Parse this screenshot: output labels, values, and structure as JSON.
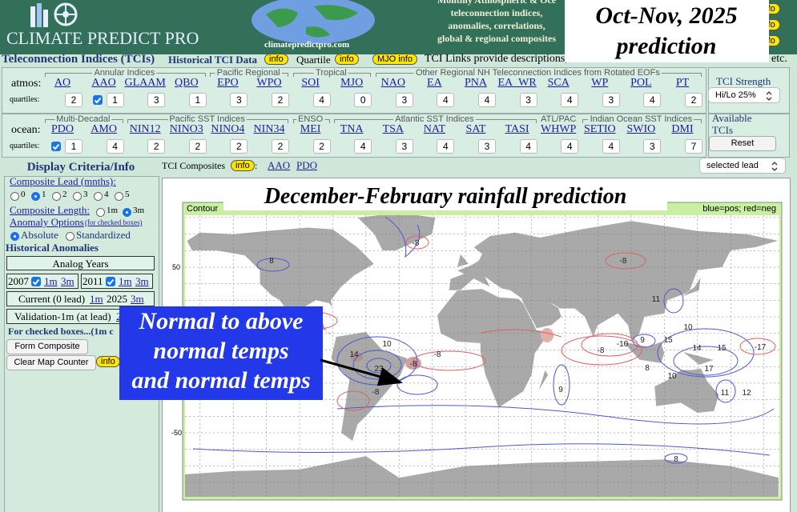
{
  "header": {
    "logo": "CLIMATE PREDICT PRO",
    "site": "climatepredictpro.com",
    "blurb": [
      "Monthly Atmospheric & Oce",
      "teleconnection indices,",
      "anomalies, correlations,",
      "global & regional composites"
    ],
    "info": "info"
  },
  "overlay_title": [
    "Oct-Nov, 2025",
    "prediction"
  ],
  "tci_bar": {
    "title": "Teleconnection Indices (TCIs)",
    "historical": "Historical TCI Data",
    "quartile": "Quartile",
    "info": "info",
    "mjo_info": "MJO info",
    "links_note": "TCI Links provide descriptions, h",
    "etc": "etc."
  },
  "atmos": {
    "label": "atmos:",
    "quartiles_label": "quartiles:",
    "groups": [
      "Annular Indices",
      "Pacific Regional",
      "Tropical",
      "Other Regional NH Teleconnection Indices from Rotated EOFs"
    ],
    "indices": [
      {
        "name": "AO",
        "quartile": 2,
        "checked": false
      },
      {
        "name": "AAO",
        "quartile": 1,
        "checked": true
      },
      {
        "name": "GLAAM",
        "quartile": 3,
        "checked": false
      },
      {
        "name": "QBO",
        "quartile": 1,
        "checked": false
      },
      {
        "name": "EPO",
        "quartile": 3,
        "checked": false
      },
      {
        "name": "WPO",
        "quartile": 2,
        "checked": false
      },
      {
        "name": "SOI",
        "quartile": 4,
        "checked": false
      },
      {
        "name": "MJO",
        "quartile": 0,
        "checked": false
      },
      {
        "name": "NAO",
        "quartile": 3,
        "checked": false
      },
      {
        "name": "EA",
        "quartile": 4,
        "checked": false
      },
      {
        "name": "PNA",
        "quartile": 4,
        "checked": false
      },
      {
        "name": "EA_WR",
        "quartile": 3,
        "checked": false
      },
      {
        "name": "SCA",
        "quartile": 4,
        "checked": false
      },
      {
        "name": "WP",
        "quartile": 3,
        "checked": false
      },
      {
        "name": "POL",
        "quartile": 4,
        "checked": false
      },
      {
        "name": "PT",
        "quartile": 2,
        "checked": false
      }
    ],
    "strength_label": "TCI Strength",
    "strength_value": "Hi/Lo 25%"
  },
  "ocean": {
    "label": "ocean:",
    "quartiles_label": "quartiles:",
    "groups": [
      "Multi-Decadal",
      "Pacific SST Indices",
      "ENSO",
      "Atlantic SST Indices",
      "ATL/PAC",
      "Indian Ocean SST Indices"
    ],
    "indices": [
      {
        "name": "PDO",
        "quartile": 1,
        "checked": true
      },
      {
        "name": "AMO",
        "quartile": 4,
        "checked": false
      },
      {
        "name": "NIN12",
        "quartile": 2,
        "checked": false
      },
      {
        "name": "NINO3",
        "quartile": 2,
        "checked": false
      },
      {
        "name": "NINO4",
        "quartile": 2,
        "checked": false
      },
      {
        "name": "NIN34",
        "quartile": 2,
        "checked": false
      },
      {
        "name": "MEI",
        "quartile": 2,
        "checked": false
      },
      {
        "name": "TNA",
        "quartile": 4,
        "checked": false
      },
      {
        "name": "TSA",
        "quartile": 3,
        "checked": false
      },
      {
        "name": "NAT",
        "quartile": 4,
        "checked": false
      },
      {
        "name": "SAT",
        "quartile": 3,
        "checked": false
      },
      {
        "name": "TASI",
        "quartile": 4,
        "checked": false
      },
      {
        "name": "WHWP",
        "quartile": 4,
        "checked": false
      },
      {
        "name": "SETIO",
        "quartile": 4,
        "checked": false
      },
      {
        "name": "SWIO",
        "quartile": 3,
        "checked": false
      },
      {
        "name": "DMI",
        "quartile": 7,
        "checked": false
      }
    ],
    "available_label": [
      "Available",
      "TCIs"
    ],
    "reset": "Reset"
  },
  "side": {
    "title": "Display Criteria/Info",
    "lead_label": "Composite Lead (mnths):",
    "lead_options": [
      "0",
      "1",
      "2",
      "3",
      "4",
      "5"
    ],
    "lead_selected": 1,
    "length_label": "Composite Length:",
    "length_options": [
      "1m",
      "3m"
    ],
    "length_selected": 1,
    "anomaly_label": "Anomaly Options",
    "anomaly_note": "(for checked boxes)",
    "anomaly_options": [
      "Absolute",
      "Standardized"
    ],
    "anomaly_selected": 0,
    "historical": "Historical Anomalies",
    "analog_title": "Analog Years",
    "analogs": [
      {
        "year": "2007",
        "checked": true,
        "links": [
          "1m",
          "3m"
        ]
      },
      {
        "year": "2011",
        "checked": true,
        "links": [
          "1m",
          "3m"
        ]
      }
    ],
    "current": [
      "Current (0 lead)",
      "1m",
      "2025",
      "3m"
    ],
    "validation": [
      "Validation-1m (at lead)",
      "2"
    ],
    "checked_note": "For checked boxes...(1m c",
    "form_button": "Form Composite",
    "clear_button": "Clear Map Counter",
    "info": "info"
  },
  "composites": {
    "label": "TCI Composites",
    "info": "info",
    "colon": ":",
    "links": [
      "AAO",
      "PDO"
    ],
    "lead_select": "selected lead"
  },
  "map": {
    "title": "December-February rainfall prediction",
    "contour": "Contour",
    "legend": "blue=pos; red=neg",
    "lat_labels": [
      "50",
      "-50"
    ],
    "contour_labels": [
      "-8",
      "8",
      "-8",
      "11",
      "10",
      "9",
      "15",
      "-10",
      "-8",
      "14",
      "15",
      "-17",
      "17",
      "8",
      "10",
      "11",
      "12",
      "9",
      "14",
      "10",
      "23",
      "-8",
      "-8",
      "-8",
      "8"
    ]
  },
  "annotation": {
    "lines": [
      "Normal to above",
      "normal temps",
      "and normal temps"
    ]
  }
}
